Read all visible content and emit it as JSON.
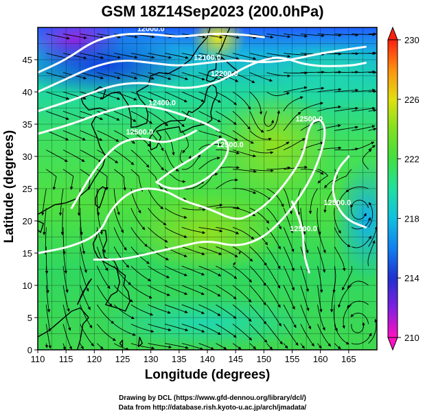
{
  "title": "GSM 18Z14Sep2023 (200.0hPa)",
  "x_axis": {
    "label": "Longitude (degrees)",
    "min": 110,
    "max": 170,
    "ticks": [
      110,
      115,
      120,
      125,
      130,
      135,
      140,
      145,
      150,
      155,
      160,
      165
    ]
  },
  "y_axis": {
    "label": "Latitude (degrees)",
    "min": 0,
    "max": 50,
    "ticks": [
      0,
      5,
      10,
      15,
      20,
      25,
      30,
      35,
      40,
      45
    ]
  },
  "colorbar": {
    "min": 210,
    "max": 230,
    "labels": [
      210,
      214,
      218,
      222,
      226,
      230
    ]
  },
  "contours": [
    {
      "label": "12000.0",
      "points": [
        [
          110,
          43
        ],
        [
          115,
          45
        ],
        [
          120,
          48
        ],
        [
          125,
          49
        ],
        [
          130,
          49
        ],
        [
          135,
          48.5
        ],
        [
          140,
          49
        ],
        [
          145,
          49
        ],
        [
          150,
          48.5
        ]
      ]
    },
    {
      "label": "12100.0",
      "points": [
        [
          110,
          40
        ],
        [
          115,
          42
        ],
        [
          120,
          44
        ],
        [
          125,
          45
        ],
        [
          130,
          44.5
        ],
        [
          135,
          44
        ],
        [
          140,
          44.5
        ],
        [
          145,
          45
        ],
        [
          150,
          44.5
        ],
        [
          155,
          45
        ],
        [
          160,
          46
        ],
        [
          168,
          47
        ]
      ]
    },
    {
      "label": "12200.0",
      "points": [
        [
          110,
          37
        ],
        [
          117,
          39
        ],
        [
          123,
          41
        ],
        [
          128,
          41.5
        ],
        [
          132,
          41
        ],
        [
          136,
          40.5
        ],
        [
          140,
          41
        ],
        [
          143,
          42
        ],
        [
          147,
          44
        ],
        [
          150,
          45
        ],
        [
          153,
          45.5
        ],
        [
          158,
          44
        ],
        [
          165,
          44
        ],
        [
          168,
          44.5
        ]
      ]
    },
    {
      "label": "12400.0",
      "points": [
        [
          110,
          33.5
        ],
        [
          116,
          35
        ],
        [
          122,
          37
        ],
        [
          127,
          38
        ],
        [
          132,
          37.5
        ],
        [
          137,
          36
        ],
        [
          140,
          35
        ],
        [
          142,
          34
        ]
      ]
    },
    {
      "label": "12500.0",
      "points": [
        [
          116,
          22
        ],
        [
          120,
          28
        ],
        [
          124,
          32
        ],
        [
          128,
          33
        ],
        [
          132,
          32
        ],
        [
          136,
          33
        ],
        [
          138,
          34
        ]
      ]
    },
    {
      "label": "12500.0",
      "points": [
        [
          131,
          26
        ],
        [
          134,
          28
        ],
        [
          138,
          30
        ],
        [
          141,
          32
        ],
        [
          143,
          33
        ],
        [
          144,
          31
        ],
        [
          142,
          28
        ],
        [
          139,
          26
        ],
        [
          136,
          25
        ],
        [
          133,
          25
        ],
        [
          131,
          26
        ]
      ]
    },
    {
      "label": "12500.0",
      "points": [
        [
          110,
          15
        ],
        [
          116,
          16
        ],
        [
          121,
          18
        ],
        [
          123,
          22
        ],
        [
          127,
          25
        ],
        [
          132,
          25
        ],
        [
          136,
          23
        ],
        [
          140,
          22
        ],
        [
          145,
          20
        ],
        [
          148,
          21
        ],
        [
          151,
          23
        ],
        [
          154,
          26
        ],
        [
          157,
          30
        ],
        [
          158,
          35
        ],
        [
          160,
          36
        ],
        [
          161,
          34
        ],
        [
          160,
          30
        ],
        [
          158,
          26
        ],
        [
          155,
          22
        ],
        [
          152,
          19
        ],
        [
          149,
          17
        ],
        [
          145,
          16
        ],
        [
          140,
          17
        ],
        [
          135,
          16
        ],
        [
          130,
          15
        ],
        [
          125,
          14
        ],
        [
          120,
          14
        ]
      ]
    },
    {
      "label": "12500.0",
      "points": [
        [
          155,
          23
        ],
        [
          156,
          21
        ],
        [
          157,
          18
        ],
        [
          157,
          15
        ],
        [
          158,
          12
        ]
      ]
    },
    {
      "label": "12500.0",
      "points": [
        [
          165,
          30
        ],
        [
          163,
          28
        ],
        [
          162,
          25
        ],
        [
          163,
          22
        ],
        [
          165,
          20
        ],
        [
          168,
          19
        ]
      ]
    }
  ],
  "cyclones": [
    [
      150.5,
      34.5
    ],
    [
      135.5,
      29
    ],
    [
      167,
      22
    ],
    [
      166.5,
      3.5
    ]
  ]
}
